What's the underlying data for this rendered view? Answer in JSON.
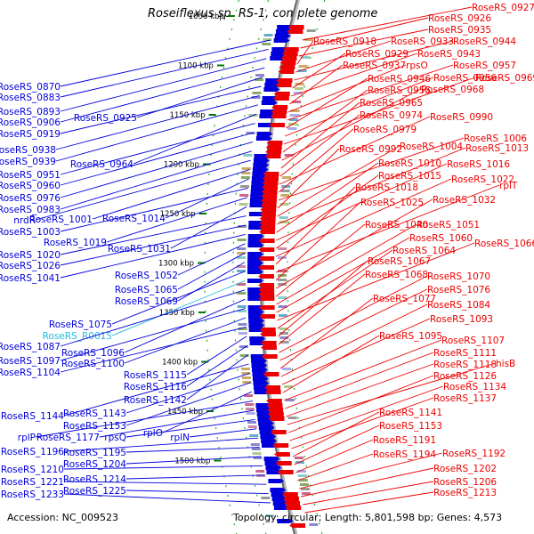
{
  "title": "Roseiflexus sp. RS-1, complete genome",
  "accession": "Accession: NC_009523",
  "topology": "Topology: circular; Length: 5,801,598 bp; Genes: 4,573",
  "colors": {
    "forward": "#0000dd",
    "reverse": "#ee0000",
    "highlight": "#22bbdd",
    "tick": "#007700"
  },
  "ticks": [
    "1050 kbp",
    "1100 kbp",
    "1150 kbp",
    "1200 kbp",
    "1250 kbp",
    "1300 kbp",
    "1350 kbp",
    "1400 kbp",
    "1450 kbp",
    "1500 kbp"
  ],
  "left_labels": [
    {
      "t": "RoseRS_0870"
    },
    {
      "t": "RoseRS_0883"
    },
    {
      "t": "RoseRS_0893"
    },
    {
      "t": "RoseRS_0906"
    },
    {
      "t": "RoseRS_0925"
    },
    {
      "t": "RoseRS_0919"
    },
    {
      "t": "RoseRS_0938"
    },
    {
      "t": "RoseRS_0939"
    },
    {
      "t": "RoseRS_0964"
    },
    {
      "t": "RoseRS_0951"
    },
    {
      "t": "RoseRS_0960"
    },
    {
      "t": "RoseRS_0976"
    },
    {
      "t": "RoseRS_0983"
    },
    {
      "t": "nrdR"
    },
    {
      "t": "RoseRS_1001"
    },
    {
      "t": "RoseRS_1014"
    },
    {
      "t": "RoseRS_1003"
    },
    {
      "t": "RoseRS_1019"
    },
    {
      "t": "RoseRS_1031"
    },
    {
      "t": "RoseRS_1020"
    },
    {
      "t": "RoseRS_1026"
    },
    {
      "t": "RoseRS_1041"
    },
    {
      "t": "RoseRS_1052"
    },
    {
      "t": "RoseRS_1065"
    },
    {
      "t": "RoseRS_1069"
    },
    {
      "t": "RoseRS_1075"
    },
    {
      "t": "RoseRS_R0015",
      "hl": true
    },
    {
      "t": "RoseRS_1087"
    },
    {
      "t": "RoseRS_1096"
    },
    {
      "t": "RoseRS_1097"
    },
    {
      "t": "RoseRS_1100"
    },
    {
      "t": "RoseRS_1104"
    },
    {
      "t": "RoseRS_1115"
    },
    {
      "t": "RoseRS_1116"
    },
    {
      "t": "RoseRS_1142"
    },
    {
      "t": "RoseRS_1144"
    },
    {
      "t": "RoseRS_1143"
    },
    {
      "t": "RoseRS_1153"
    },
    {
      "t": "rplO"
    },
    {
      "t": "rplP"
    },
    {
      "t": "RoseRS_1177"
    },
    {
      "t": "rpsQ"
    },
    {
      "t": "rplN"
    },
    {
      "t": "RoseRS_1196"
    },
    {
      "t": "RoseRS_1195"
    },
    {
      "t": "RoseRS_1204"
    },
    {
      "t": "RoseRS_1210"
    },
    {
      "t": "RoseRS_1214"
    },
    {
      "t": "RoseRS_1221"
    },
    {
      "t": "RoseRS_1225"
    },
    {
      "t": "RoseRS_1233"
    }
  ],
  "right_labels": [
    {
      "t": "RoseRS_0927"
    },
    {
      "t": "RoseRS_0926"
    },
    {
      "t": "RoseRS_0935"
    },
    {
      "t": "RoseRS_0918"
    },
    {
      "t": "RoseRS_0933"
    },
    {
      "t": "RoseRS_0944"
    },
    {
      "t": "RoseRS_0929"
    },
    {
      "t": "RoseRS_0943"
    },
    {
      "t": "RoseRS_0937"
    },
    {
      "t": "rpsO"
    },
    {
      "t": "RoseRS_0957"
    },
    {
      "t": "RoseRS_0946"
    },
    {
      "t": "RoseRS_0956"
    },
    {
      "t": "RoseRS_0969"
    },
    {
      "t": "RoseRS_0955"
    },
    {
      "t": "RoseRS_0968"
    },
    {
      "t": "RoseRS_0965"
    },
    {
      "t": "RoseRS_0974"
    },
    {
      "t": "RoseRS_0990"
    },
    {
      "t": "RoseRS_0979"
    },
    {
      "t": "RoseRS_1006"
    },
    {
      "t": "RoseRS_0992"
    },
    {
      "t": "RoseRS_1004"
    },
    {
      "t": "RoseRS_1013"
    },
    {
      "t": "RoseRS_1010"
    },
    {
      "t": "RoseRS_1016"
    },
    {
      "t": "RoseRS_1015"
    },
    {
      "t": "RoseRS_1022"
    },
    {
      "t": "RoseRS_1018"
    },
    {
      "t": "rplT"
    },
    {
      "t": "RoseRS_1025"
    },
    {
      "t": "RoseRS_1032"
    },
    {
      "t": "RoseRS_1040"
    },
    {
      "t": "RoseRS_1051"
    },
    {
      "t": "RoseRS_1060"
    },
    {
      "t": "RoseRS_1066"
    },
    {
      "t": "RoseRS_1064"
    },
    {
      "t": "RoseRS_1067"
    },
    {
      "t": "RoseRS_1068"
    },
    {
      "t": "RoseRS_1070"
    },
    {
      "t": "RoseRS_1076"
    },
    {
      "t": "RoseRS_1077"
    },
    {
      "t": "RoseRS_1084"
    },
    {
      "t": "RoseRS_1093"
    },
    {
      "t": "RoseRS_1095"
    },
    {
      "t": "RoseRS_1107"
    },
    {
      "t": "RoseRS_1111"
    },
    {
      "t": "RoseRS_1118"
    },
    {
      "t": "hisB"
    },
    {
      "t": "RoseRS_1126"
    },
    {
      "t": "RoseRS_1134"
    },
    {
      "t": "RoseRS_1137"
    },
    {
      "t": "RoseRS_1141"
    },
    {
      "t": "RoseRS_1153"
    },
    {
      "t": "RoseRS_1191"
    },
    {
      "t": "RoseRS_1194"
    },
    {
      "t": "RoseRS_1192"
    },
    {
      "t": "RoseRS_1202"
    },
    {
      "t": "RoseRS_1206"
    },
    {
      "t": "RoseRS_1213"
    }
  ]
}
